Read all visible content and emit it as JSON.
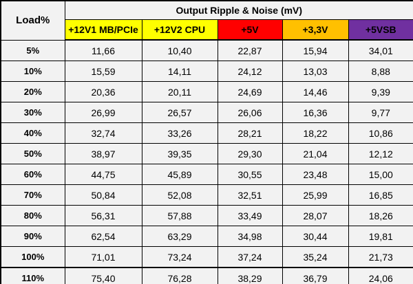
{
  "table": {
    "corner_label": "Load%",
    "title": "Output Ripple & Noise (mV)",
    "columns": [
      {
        "label": "+12V1 MB/PCIe",
        "color": "#FFFF00"
      },
      {
        "label": "+12V2 CPU",
        "color": "#FFFF00"
      },
      {
        "label": "+5V",
        "color": "#FF0000"
      },
      {
        "label": "+3,3V",
        "color": "#FFC000"
      },
      {
        "label": "+5VSB",
        "color": "#7030A0"
      }
    ],
    "rows": [
      {
        "load": "5%",
        "values": [
          "11,66",
          "10,40",
          "22,87",
          "15,94",
          "34,01"
        ]
      },
      {
        "load": "10%",
        "values": [
          "15,59",
          "14,11",
          "24,12",
          "13,03",
          "8,88"
        ]
      },
      {
        "load": "20%",
        "values": [
          "20,36",
          "20,11",
          "24,69",
          "14,46",
          "9,39"
        ]
      },
      {
        "load": "30%",
        "values": [
          "26,99",
          "26,57",
          "26,06",
          "16,36",
          "9,77"
        ]
      },
      {
        "load": "40%",
        "values": [
          "32,74",
          "33,26",
          "28,21",
          "18,22",
          "10,86"
        ]
      },
      {
        "load": "50%",
        "values": [
          "38,97",
          "39,35",
          "29,30",
          "21,04",
          "12,12"
        ]
      },
      {
        "load": "60%",
        "values": [
          "44,75",
          "45,89",
          "30,55",
          "23,48",
          "15,00"
        ]
      },
      {
        "load": "70%",
        "values": [
          "50,84",
          "52,08",
          "32,51",
          "25,99",
          "16,85"
        ]
      },
      {
        "load": "80%",
        "values": [
          "56,31",
          "57,88",
          "33,49",
          "28,07",
          "18,26"
        ]
      },
      {
        "load": "90%",
        "values": [
          "62,54",
          "63,29",
          "34,98",
          "30,44",
          "19,81"
        ]
      },
      {
        "load": "100%",
        "values": [
          "71,01",
          "73,24",
          "37,24",
          "35,24",
          "21,73"
        ]
      },
      {
        "load": "110%",
        "values": [
          "75,40",
          "76,28",
          "38,29",
          "36,79",
          "24,06"
        ]
      }
    ]
  },
  "colors": {
    "cell_background": "#F2F2F2",
    "border": "#000000",
    "text": "#000000",
    "yellow_rail": "#FFFF00",
    "red_rail": "#FF0000",
    "orange_rail": "#FFC000",
    "purple_rail": "#7030A0"
  },
  "chart_data": {
    "type": "table",
    "title": "Output Ripple & Noise (mV)",
    "row_header": "Load%",
    "categories": [
      "5%",
      "10%",
      "20%",
      "30%",
      "40%",
      "50%",
      "60%",
      "70%",
      "80%",
      "90%",
      "100%",
      "110%"
    ],
    "series": [
      {
        "name": "+12V1 MB/PCIe",
        "values": [
          11.66,
          15.59,
          20.36,
          26.99,
          32.74,
          38.97,
          44.75,
          50.84,
          56.31,
          62.54,
          71.01,
          75.4
        ]
      },
      {
        "name": "+12V2 CPU",
        "values": [
          10.4,
          14.11,
          20.11,
          26.57,
          33.26,
          39.35,
          45.89,
          52.08,
          57.88,
          63.29,
          73.24,
          76.28
        ]
      },
      {
        "name": "+5V",
        "values": [
          22.87,
          24.12,
          24.69,
          26.06,
          28.21,
          29.3,
          30.55,
          32.51,
          33.49,
          34.98,
          37.24,
          38.29
        ]
      },
      {
        "name": "+3,3V",
        "values": [
          15.94,
          13.03,
          14.46,
          16.36,
          18.22,
          21.04,
          23.48,
          25.99,
          28.07,
          30.44,
          35.24,
          36.79
        ]
      },
      {
        "name": "+5VSB",
        "values": [
          34.01,
          8.88,
          9.39,
          9.77,
          10.86,
          12.12,
          15.0,
          16.85,
          18.26,
          19.81,
          21.73,
          24.06
        ]
      }
    ],
    "units": "mV",
    "decimal_separator": ","
  }
}
